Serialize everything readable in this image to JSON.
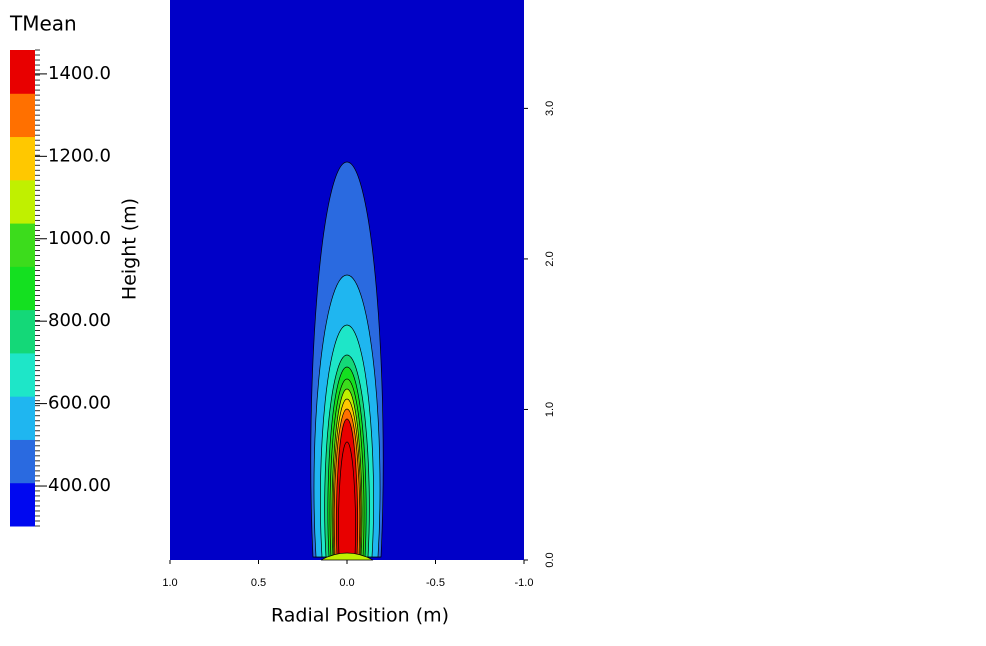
{
  "chart_data": {
    "type": "contour",
    "colorbar_title": "TMean",
    "clim": [
      303,
      1458
    ],
    "colors": [
      "#0008f0",
      "#2a6ae0",
      "#1fb6f0",
      "#1ee6c8",
      "#14d878",
      "#14e020",
      "#3cdc1c",
      "#c0f000",
      "#ffc800",
      "#ff7000",
      "#e80000"
    ],
    "cticks": [
      {
        "value": 400,
        "label": "400.00"
      },
      {
        "value": 600,
        "label": "600.00"
      },
      {
        "value": 800,
        "label": "800.00"
      },
      {
        "value": 1000,
        "label": "1000.0"
      },
      {
        "value": 1200,
        "label": "1200.0"
      },
      {
        "value": 1400,
        "label": "1400.0"
      }
    ],
    "xlabel": "Radial Position (m)",
    "ylabel": "Height (m)",
    "xlim": [
      1.0,
      -1.0
    ],
    "xticks": [
      {
        "value": 1.0,
        "label": "1.0"
      },
      {
        "value": 0.5,
        "label": "0.5"
      },
      {
        "value": 0,
        "label": "0.0"
      },
      {
        "value": -0.5,
        "label": "-0.5"
      },
      {
        "value": -1.0,
        "label": "-1.0"
      }
    ],
    "ylim": [
      0,
      3.72
    ],
    "yticks": [
      {
        "value": 0,
        "label": "0.0"
      },
      {
        "value": 1.0,
        "label": "1.0"
      },
      {
        "value": 2.0,
        "label": "2.0"
      },
      {
        "value": 3.0,
        "label": "3.0"
      }
    ],
    "background": "#0000c8"
  }
}
